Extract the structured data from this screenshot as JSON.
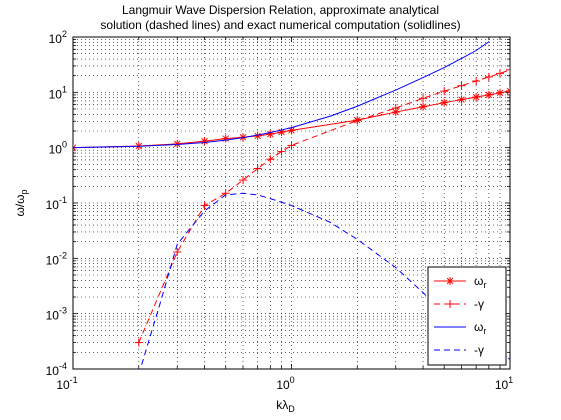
{
  "chart_data": {
    "type": "line",
    "title_lines": [
      "Langmuir Wave Dispersion Relation, approximate analytical",
      "solution (dashed lines) and exact numerical computation (solidlines)"
    ],
    "xlabel_main": "kλ",
    "xlabel_sub": "D",
    "ylabel_main": "ω/ω",
    "ylabel_sub": "p",
    "xscale": "log",
    "yscale": "log",
    "xlim": [
      0.1,
      10
    ],
    "ylim": [
      0.0001,
      100
    ],
    "x_ticks": [
      {
        "value": 0.1,
        "base": "10",
        "exp": "-1"
      },
      {
        "value": 1,
        "base": "10",
        "exp": "0"
      },
      {
        "value": 10,
        "base": "10",
        "exp": "1"
      }
    ],
    "y_ticks": [
      {
        "value": 0.0001,
        "base": "10",
        "exp": "-4"
      },
      {
        "value": 0.001,
        "base": "10",
        "exp": "-3"
      },
      {
        "value": 0.01,
        "base": "10",
        "exp": "-2"
      },
      {
        "value": 0.1,
        "base": "10",
        "exp": "-1"
      },
      {
        "value": 1,
        "base": "10",
        "exp": "0"
      },
      {
        "value": 10,
        "base": "10",
        "exp": "1"
      },
      {
        "value": 100,
        "base": "10",
        "exp": "2"
      }
    ],
    "grid": true,
    "legend_position": "bottom-right",
    "series": [
      {
        "name": "ω",
        "name_sub": "r",
        "color": "#ff0000",
        "dash": "solid",
        "marker": "star",
        "x": [
          0.1,
          0.2,
          0.3,
          0.4,
          0.5,
          0.6,
          0.7,
          0.8,
          0.9,
          1.0,
          2.0,
          3.0,
          4.0,
          5.0,
          6.0,
          7.0,
          8.0,
          9.0,
          10.0
        ],
        "y": [
          1.0,
          1.07,
          1.17,
          1.31,
          1.46,
          1.54,
          1.63,
          1.76,
          1.91,
          2.05,
          3.15,
          4.4,
          5.5,
          6.5,
          7.4,
          8.2,
          9.0,
          9.8,
          10.6
        ]
      },
      {
        "name": "-γ",
        "name_sub": "",
        "color": "#ff0000",
        "dash": "dashed",
        "marker": "plus",
        "x": [
          0.2,
          0.3,
          0.4,
          0.5,
          0.6,
          0.7,
          0.8,
          0.9,
          1.0,
          2.0,
          3.0,
          4.0,
          5.0,
          6.0,
          7.0,
          8.0,
          9.0,
          10.0
        ],
        "y": [
          0.0003,
          0.013,
          0.09,
          0.15,
          0.26,
          0.42,
          0.62,
          0.85,
          1.1,
          3.1,
          5.2,
          7.8,
          10.5,
          13.2,
          16.0,
          19.0,
          22.0,
          25.5
        ]
      },
      {
        "name": "ω",
        "name_sub": "r",
        "color": "#0000ff",
        "dash": "solid",
        "marker": "none",
        "x": [
          0.1,
          0.2,
          0.3,
          0.4,
          0.5,
          0.6,
          0.7,
          0.8,
          0.9,
          1.0,
          1.5,
          2.0,
          3.0,
          4.0,
          5.0,
          6.0,
          7.0,
          8.0
        ],
        "y": [
          1.0,
          1.06,
          1.14,
          1.24,
          1.37,
          1.52,
          1.69,
          1.88,
          2.09,
          2.3,
          3.7,
          5.6,
          11.0,
          18.5,
          28.0,
          41.0,
          57.0,
          82.0
        ]
      },
      {
        "name": "-γ",
        "name_sub": "",
        "color": "#0000ff",
        "dash": "dashed",
        "marker": "none",
        "x": [
          0.2,
          0.25,
          0.3,
          0.4,
          0.5,
          0.6,
          0.7,
          0.8,
          1.0,
          1.5,
          2.0,
          3.0,
          4.0,
          5.0,
          6.0,
          8.0,
          10.0
        ],
        "y": [
          8e-05,
          0.0015,
          0.018,
          0.072,
          0.14,
          0.15,
          0.14,
          0.12,
          0.09,
          0.045,
          0.022,
          0.0068,
          0.0024,
          0.001,
          0.00055,
          0.00025,
          0.00015
        ]
      }
    ]
  }
}
